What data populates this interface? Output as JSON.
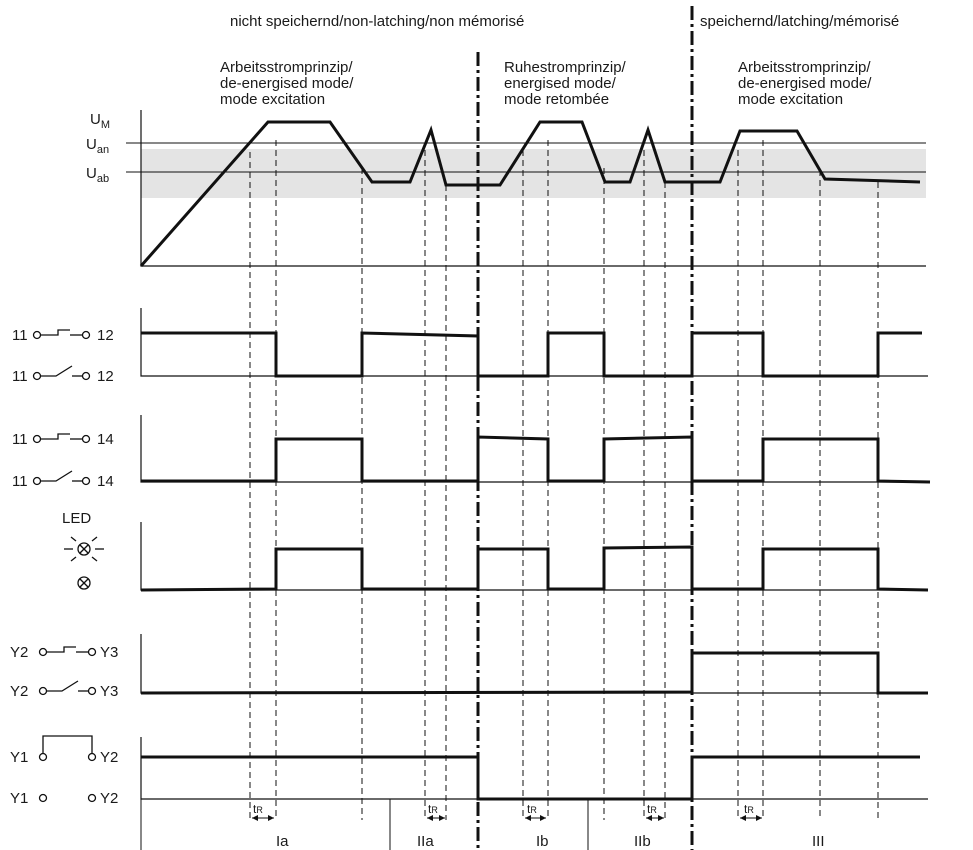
{
  "header": {
    "non_latching": "nicht speichernd/non-latching/non mémorisé",
    "latching": "speichernd/latching/mémorisé"
  },
  "modes": [
    {
      "line1": "Arbeitsstromprinzip/",
      "line2": "de-energised mode/",
      "line3": "mode excitation"
    },
    {
      "line1": "Ruhestromprinzip/",
      "line2": "energised mode/",
      "line3": "mode retombée"
    },
    {
      "line1": "Arbeitsstromprinzip/",
      "line2": "de-energised mode/",
      "line3": "mode excitation"
    }
  ],
  "voltage_levels": {
    "um": "U",
    "um_sub": "M",
    "uan": "U",
    "uan_sub": "an",
    "uab": "U",
    "uab_sub": "ab"
  },
  "contacts": {
    "c11_12_nc_left": "11",
    "c11_12_nc_right": "12",
    "c11_12_no_left": "11",
    "c11_12_no_right": "12",
    "c11_14_nc_left": "11",
    "c11_14_nc_right": "14",
    "c11_14_no_left": "11",
    "c11_14_no_right": "14",
    "led_label": "LED",
    "y2y3_nc_left": "Y2",
    "y2y3_nc_right": "Y3",
    "y2y3_no_left": "Y2",
    "y2y3_no_right": "Y3",
    "y1y2_bridged_left": "Y1",
    "y1y2_bridged_right": "Y2",
    "y1y2_open_left": "Y1",
    "y1y2_open_right": "Y2"
  },
  "delay_label": {
    "t": "t",
    "sub": "R"
  },
  "sections": [
    "Ia",
    "IIa",
    "Ib",
    "IIb",
    "III"
  ],
  "colors": {
    "hysteresis_band": "#e4e4e4",
    "line": "#111111"
  }
}
